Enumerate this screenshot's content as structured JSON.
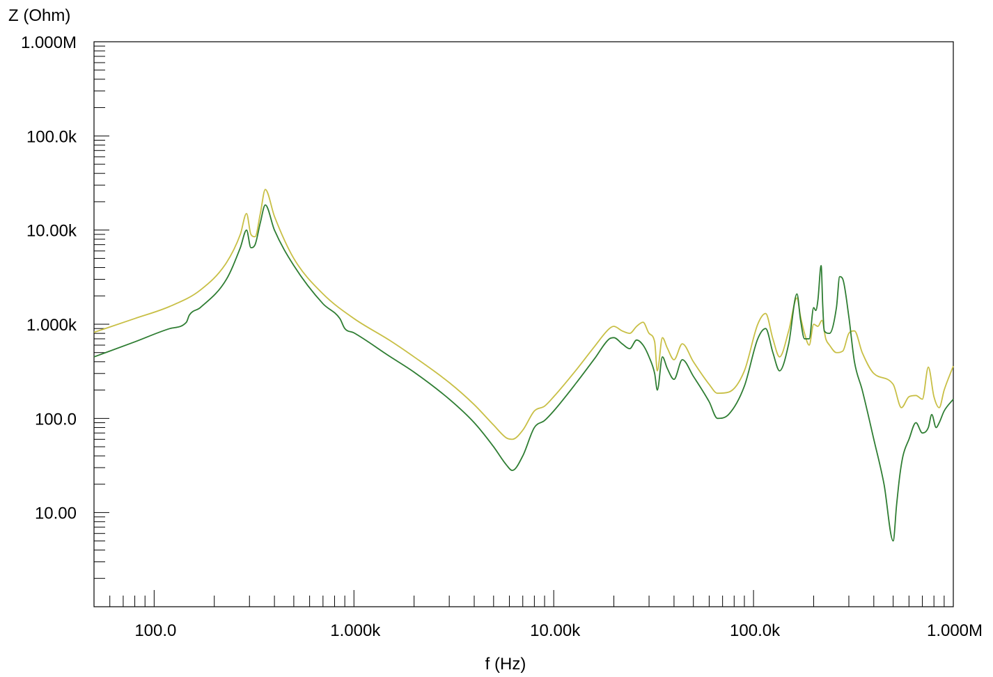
{
  "chart_data": {
    "type": "line",
    "title": "",
    "xlabel": "f (Hz)",
    "ylabel": "Z (Ohm)",
    "xscale": "log",
    "yscale": "log",
    "xlim": [
      50,
      1000000
    ],
    "ylim": [
      1,
      1000000
    ],
    "grid": false,
    "x_tick_values": [
      100,
      1000,
      10000,
      100000,
      1000000
    ],
    "x_tick_labels": [
      "100.0",
      "1.000k",
      "10.00k",
      "100.0k",
      "1.000M"
    ],
    "y_tick_values": [
      1000000,
      100000,
      10000,
      1000,
      100,
      10
    ],
    "y_tick_labels": [
      "1.000M",
      "100.0k",
      "10.00k",
      "1.000k",
      "100.0",
      "10.00"
    ],
    "series": [
      {
        "color": "#c8bf45",
        "x": [
          50,
          80,
          120,
          170,
          230,
          270,
          290,
          305,
          320,
          340,
          360,
          400,
          500,
          700,
          1000,
          1500,
          2000,
          3000,
          4000,
          5000,
          5800,
          6200,
          7000,
          8000,
          9000,
          10000,
          13000,
          16000,
          19000,
          20000,
          22000,
          24000,
          26000,
          28000,
          30000,
          32000,
          33000,
          35000,
          37000,
          40000,
          44000,
          50000,
          60000,
          66000,
          75000,
          90000,
          105000,
          115000,
          125000,
          135000,
          150000,
          165000,
          172000,
          180000,
          190000,
          200000,
          210000,
          220000,
          230000,
          240000,
          260000,
          280000,
          300000,
          320000,
          350000,
          400000,
          500000,
          550000,
          600000,
          650000,
          700000,
          750000,
          800000,
          850000,
          900000,
          1000000
        ],
        "y": [
          820,
          1150,
          1550,
          2300,
          4500,
          9000,
          15000,
          9000,
          8500,
          15000,
          27000,
          14000,
          5000,
          2100,
          1150,
          680,
          450,
          240,
          140,
          85,
          62,
          60,
          75,
          120,
          135,
          170,
          330,
          580,
          900,
          950,
          850,
          800,
          950,
          1050,
          800,
          650,
          320,
          720,
          560,
          420,
          620,
          400,
          230,
          185,
          190,
          320,
          1000,
          1300,
          700,
          450,
          850,
          1900,
          1200,
          800,
          600,
          1000,
          950,
          1100,
          700,
          600,
          500,
          520,
          800,
          850,
          500,
          300,
          230,
          130,
          170,
          175,
          160,
          350,
          170,
          130,
          200,
          360
        ]
      },
      {
        "color": "#2e7d32",
        "x": [
          50,
          80,
          120,
          145,
          150,
          170,
          230,
          270,
          290,
          305,
          320,
          340,
          360,
          400,
          500,
          700,
          850,
          900,
          1000,
          1500,
          2000,
          3000,
          4000,
          5000,
          5800,
          6200,
          7000,
          8000,
          9000,
          10000,
          13000,
          16000,
          19000,
          20000,
          22000,
          24000,
          26000,
          28000,
          30000,
          32000,
          33000,
          35000,
          37000,
          40000,
          44000,
          50000,
          60000,
          66000,
          75000,
          90000,
          105000,
          115000,
          125000,
          135000,
          150000,
          165000,
          172000,
          180000,
          190000,
          200000,
          205000,
          210000,
          218000,
          222000,
          226000,
          240000,
          260000,
          270000,
          280000,
          300000,
          320000,
          350000,
          400000,
          450000,
          500000,
          520000,
          540000,
          560000,
          600000,
          650000,
          700000,
          750000,
          780000,
          820000,
          850000,
          900000,
          1000000
        ],
        "y": [
          450,
          650,
          900,
          1050,
          1250,
          1500,
          3000,
          6500,
          10000,
          6500,
          7000,
          12000,
          18500,
          10000,
          4200,
          1650,
          1150,
          900,
          810,
          460,
          310,
          160,
          90,
          50,
          32,
          28,
          40,
          80,
          95,
          120,
          240,
          430,
          700,
          720,
          620,
          550,
          680,
          600,
          450,
          300,
          200,
          450,
          340,
          260,
          420,
          280,
          150,
          100,
          110,
          220,
          700,
          900,
          500,
          320,
          620,
          2100,
          1100,
          700,
          700,
          1500,
          1400,
          1800,
          4200,
          1600,
          850,
          800,
          1500,
          3200,
          3000,
          1200,
          400,
          200,
          60,
          20,
          5,
          12,
          25,
          40,
          60,
          90,
          70,
          80,
          110,
          80,
          90,
          120,
          160
        ]
      }
    ]
  }
}
